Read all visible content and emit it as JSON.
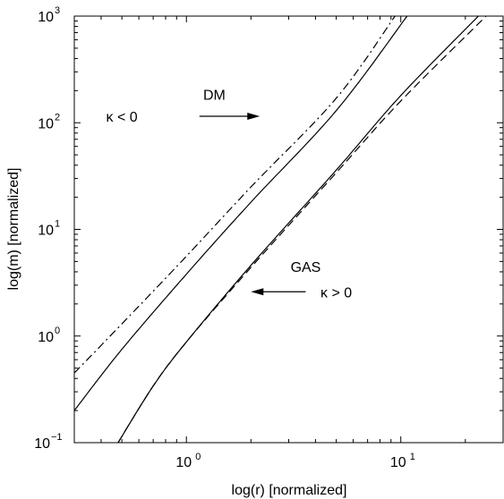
{
  "chart_data": {
    "type": "line",
    "title": "",
    "xlabel": "log(r) [normalized]",
    "ylabel": "log(m) [normalized]",
    "xscale": "log",
    "yscale": "log",
    "xlim": [
      0.3,
      30
    ],
    "ylim": [
      0.1,
      1000
    ],
    "grid": false,
    "x_ticks": [
      {
        "value": 1,
        "base": "10",
        "exp": "0"
      },
      {
        "value": 10,
        "base": "10",
        "exp": "1"
      }
    ],
    "y_ticks": [
      {
        "value": 0.1,
        "base": "10",
        "exp": "−1"
      },
      {
        "value": 1,
        "base": "10",
        "exp": "0"
      },
      {
        "value": 10,
        "base": "10",
        "exp": "1"
      },
      {
        "value": 100,
        "base": "10",
        "exp": "2"
      },
      {
        "value": 1000,
        "base": "10",
        "exp": "3"
      }
    ],
    "series": [
      {
        "style": "dashdot",
        "x": [
          0.3,
          0.5,
          1,
          2,
          5,
          9.4
        ],
        "y": [
          0.45,
          1.3,
          5.6,
          25,
          170,
          1000
        ]
      },
      {
        "style": "solid",
        "x": [
          0.3,
          0.5,
          1,
          2,
          5,
          10.7
        ],
        "y": [
          0.2,
          0.75,
          3.8,
          18,
          130,
          1000
        ]
      },
      {
        "style": "dashed",
        "x": [
          0.48,
          0.7,
          1,
          2,
          5,
          10,
          25
        ],
        "y": [
          0.1,
          0.34,
          0.88,
          4.4,
          34,
          160,
          1000
        ]
      },
      {
        "style": "solid",
        "x": [
          0.48,
          0.7,
          1,
          2,
          5,
          10,
          23
        ],
        "y": [
          0.1,
          0.34,
          0.88,
          4.6,
          36,
          180,
          1000
        ]
      }
    ],
    "annotations": [
      {
        "id": "dm",
        "text": "DM",
        "label_pos": [
          1.35,
          185
        ],
        "arrow_from": [
          1.15,
          115
        ],
        "arrow_to": [
          2.2,
          115
        ]
      },
      {
        "id": "kappa-neg",
        "text": "κ < 0",
        "label_pos": [
          0.5,
          115
        ]
      },
      {
        "id": "gas",
        "text": "GAS",
        "label_pos": [
          3.6,
          4.5
        ],
        "arrow_from": [
          3.6,
          2.6
        ],
        "arrow_to": [
          2.0,
          2.6
        ]
      },
      {
        "id": "kappa-pos",
        "text": "κ > 0",
        "label_pos": [
          5.0,
          2.6
        ]
      }
    ]
  }
}
